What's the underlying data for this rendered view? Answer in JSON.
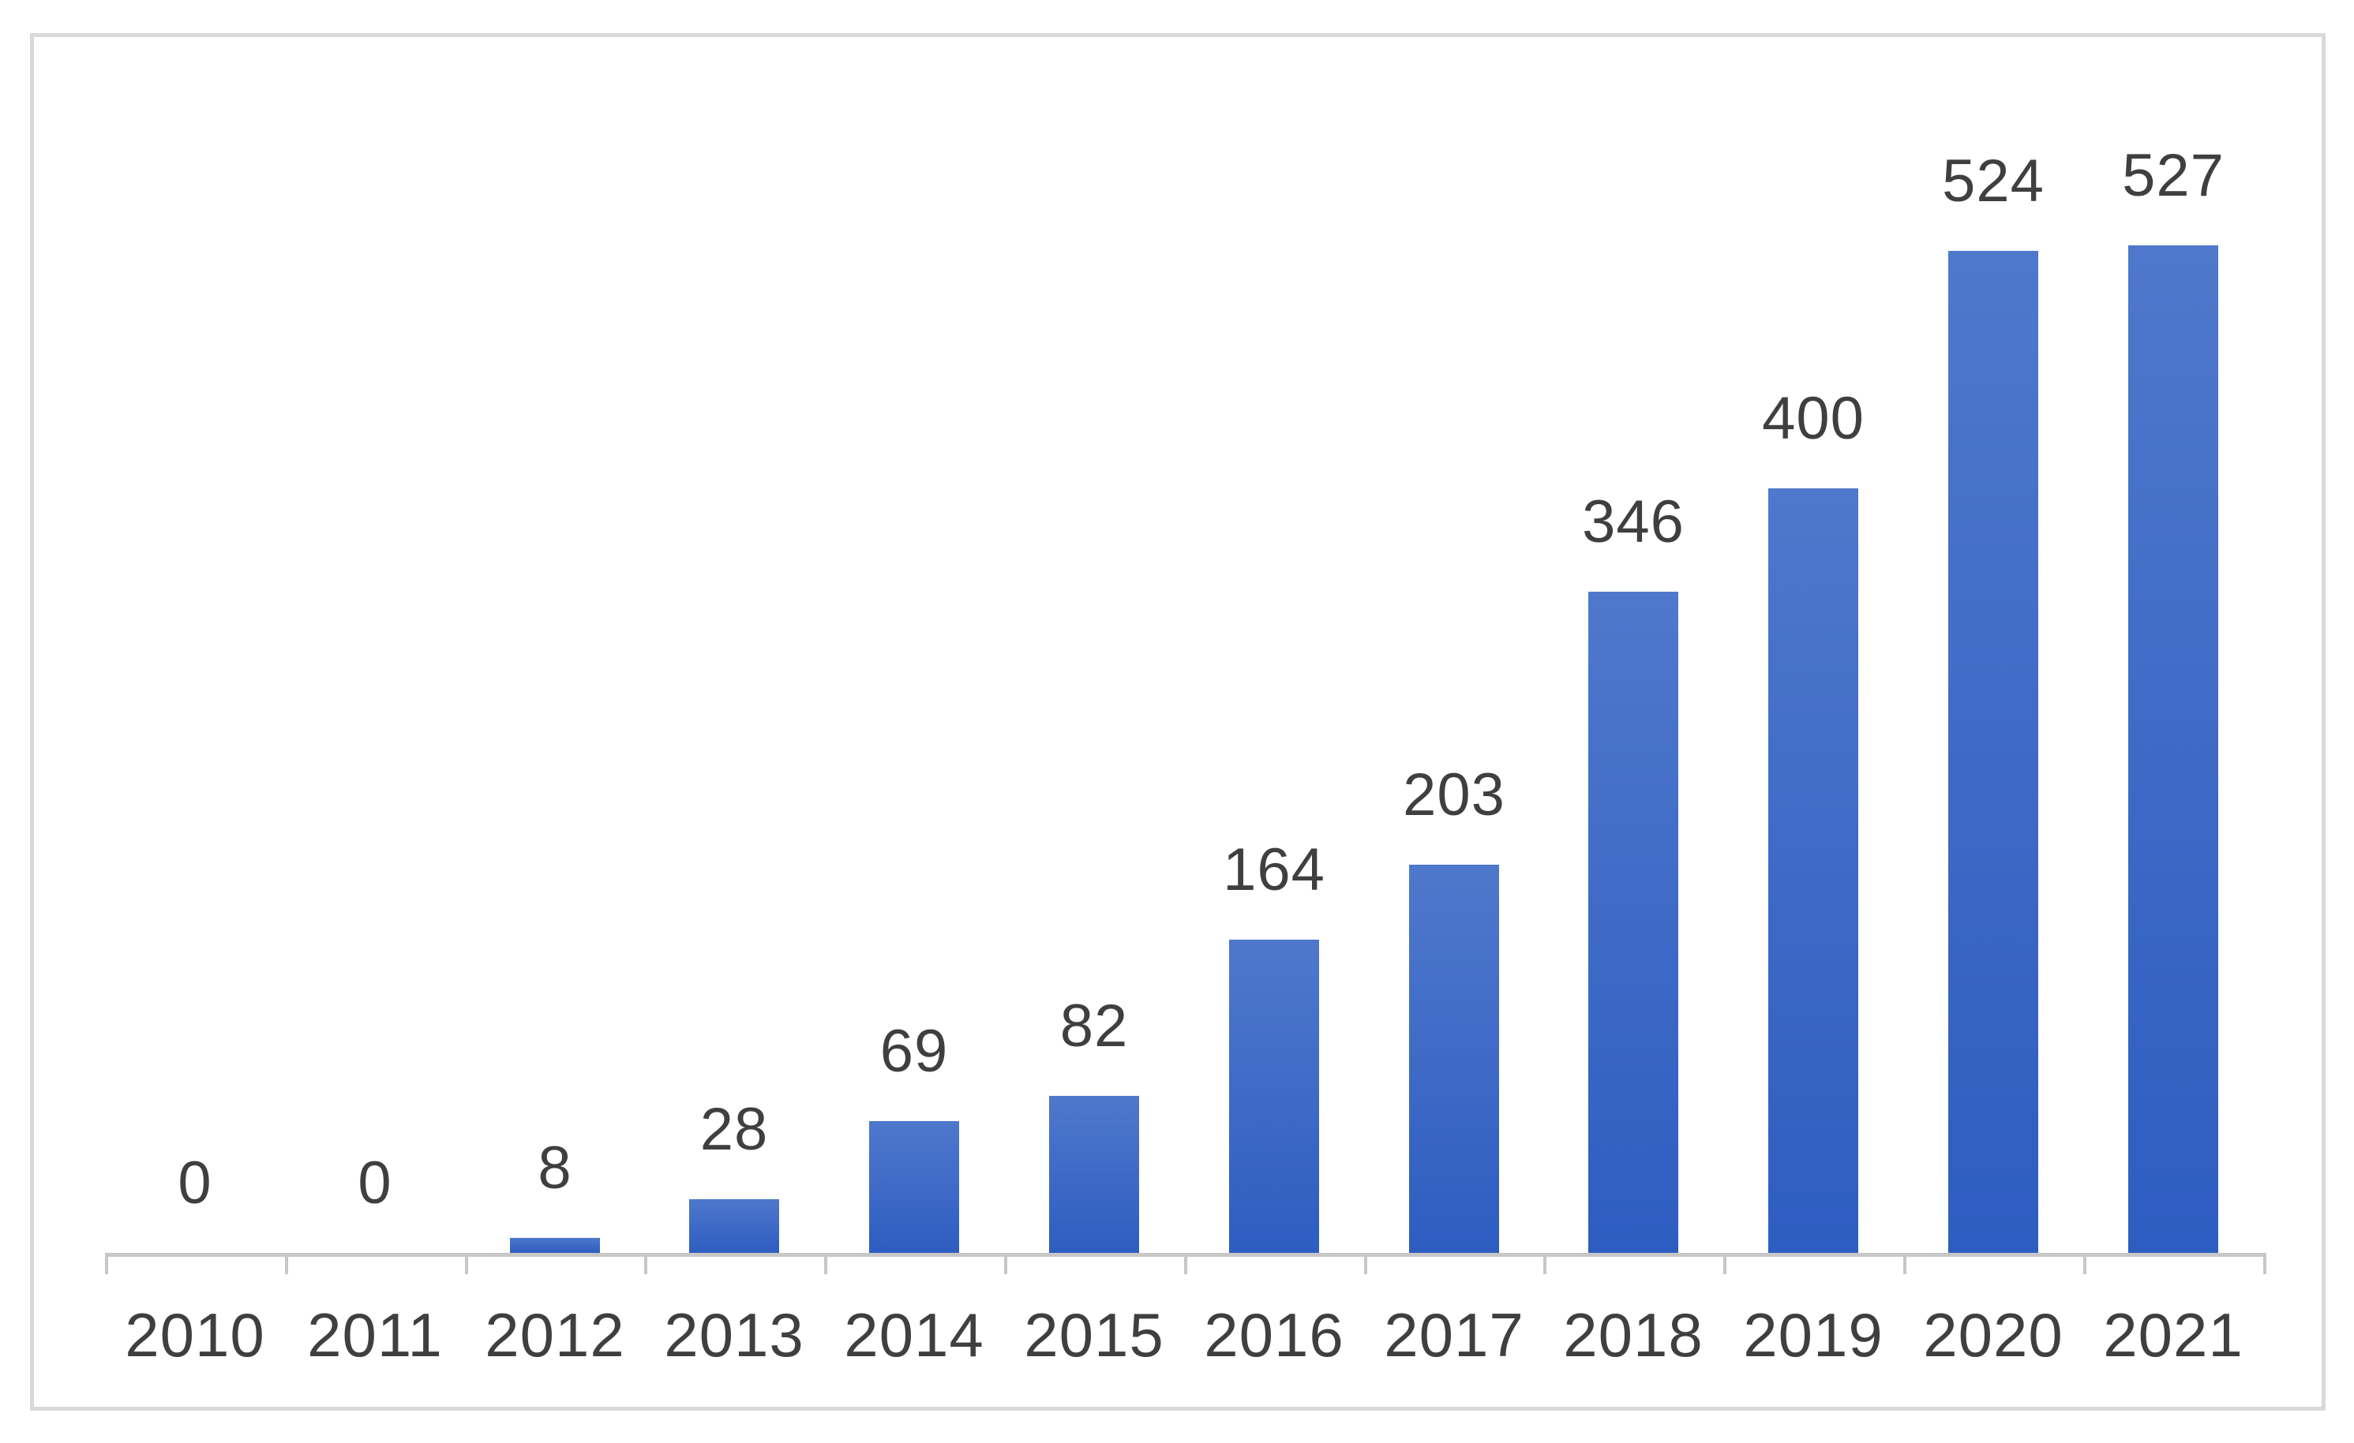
{
  "chart_data": {
    "type": "bar",
    "categories": [
      "2010",
      "2011",
      "2012",
      "2013",
      "2014",
      "2015",
      "2016",
      "2017",
      "2018",
      "2019",
      "2020",
      "2021"
    ],
    "values": [
      0,
      0,
      8,
      28,
      69,
      82,
      164,
      203,
      346,
      400,
      524,
      527
    ],
    "data_labels": [
      0,
      0,
      8,
      28,
      69,
      82,
      164,
      203,
      346,
      400,
      524,
      527
    ],
    "title": "",
    "xlabel": "",
    "ylabel": "",
    "ylim": [
      0,
      600
    ],
    "grid": false,
    "legend": false,
    "data_labels_visible": true,
    "colors": {
      "bar_gradient_top": "#4F78CC",
      "bar_gradient_bottom": "#2E5DC1",
      "axis_line": "#C7C7C7",
      "tick": "#C7C7C7",
      "label_text": "#3F3F3F",
      "frame_border": "#D9D9D9",
      "background": "#FFFFFF"
    }
  }
}
